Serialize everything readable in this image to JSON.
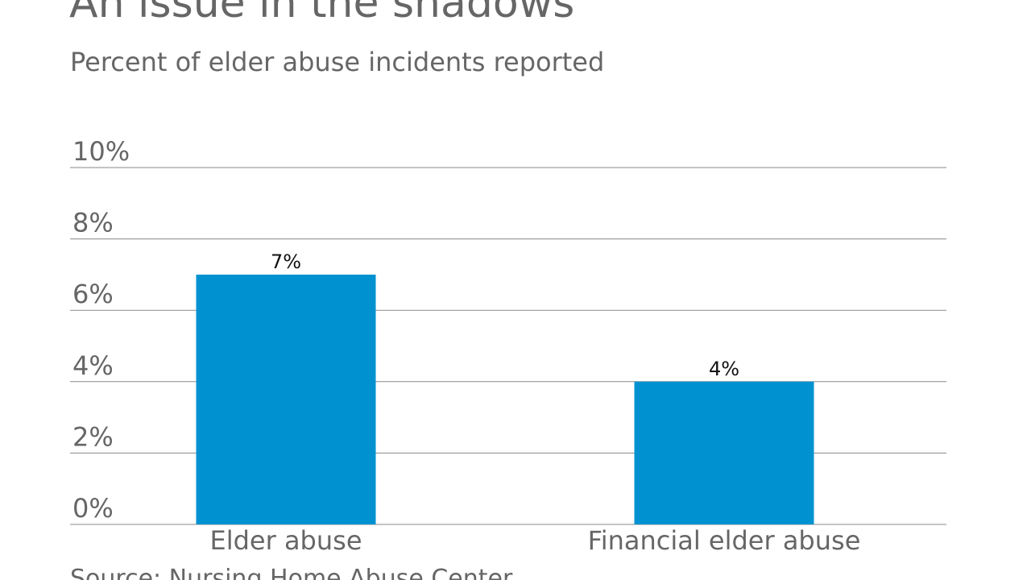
{
  "title": "An issue in the shadows",
  "subtitle": "Percent of elder abuse incidents reported",
  "source": "Source: Nursing Home Abuse Center",
  "colors": {
    "bar": "#0092D0",
    "grid": "#8a8a8a",
    "text": "#666666"
  },
  "chart_data": {
    "type": "bar",
    "title": "An issue in the shadows",
    "subtitle": "Percent of elder abuse incidents reported",
    "categories": [
      "Elder abuse",
      "Financial elder abuse"
    ],
    "values": [
      7,
      4
    ],
    "data_labels": [
      "7%",
      "4%"
    ],
    "ylim": [
      0,
      10
    ],
    "yticks": [
      0,
      2,
      4,
      6,
      8,
      10
    ],
    "ytick_labels": [
      "0%",
      "2%",
      "4%",
      "6%",
      "8%",
      "10%"
    ],
    "xlabel": "",
    "ylabel": "",
    "grid": true,
    "legend": "none"
  }
}
